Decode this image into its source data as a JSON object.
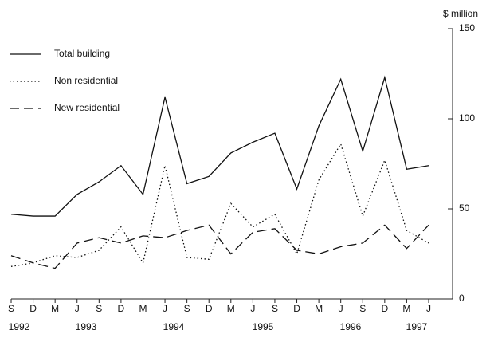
{
  "chart_data": {
    "type": "line",
    "y_label": "$ million",
    "categories": [
      "S",
      "D",
      "M",
      "J",
      "S",
      "D",
      "M",
      "J",
      "S",
      "D",
      "M",
      "J",
      "S",
      "D",
      "M",
      "J",
      "S",
      "D",
      "M",
      "J"
    ],
    "years": [
      "1992",
      "1993",
      "1994",
      "1995",
      "1996",
      "1997"
    ],
    "ylim": [
      0,
      150
    ],
    "yticks": [
      0,
      50,
      100,
      150
    ],
    "series": [
      {
        "name": "Total building",
        "color": "#111111",
        "style": "solid",
        "values": [
          47,
          46,
          46,
          58,
          65,
          74,
          58,
          112,
          64,
          68,
          81,
          87,
          92,
          61,
          96,
          122,
          82,
          123,
          72,
          74
        ]
      },
      {
        "name": "Non residential",
        "color": "#111111",
        "style": "dotted",
        "values": [
          18,
          20,
          24,
          23,
          27,
          40,
          20,
          74,
          23,
          22,
          53,
          40,
          47,
          25,
          66,
          86,
          46,
          77,
          38,
          31
        ]
      },
      {
        "name": "New residential",
        "color": "#111111",
        "style": "dashed",
        "values": [
          24,
          20,
          17,
          31,
          34,
          31,
          35,
          34,
          38,
          41,
          25,
          37,
          39,
          27,
          25,
          29,
          31,
          41,
          28,
          41
        ]
      }
    ]
  }
}
